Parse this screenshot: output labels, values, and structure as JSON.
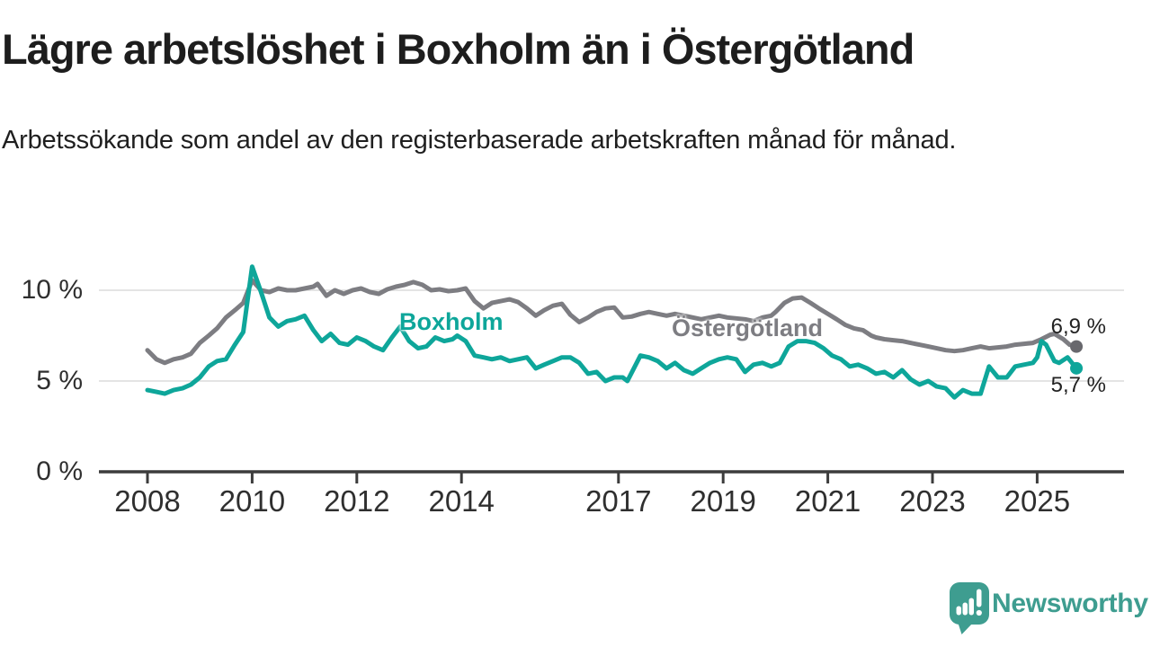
{
  "header": {
    "title": "Lägre arbetslöshet i Boxholm än i Östergötland",
    "subtitle": "Arbetssökande som andel av den registerbaserade arbetskraften månad för månad."
  },
  "chart_data": {
    "type": "line",
    "title": "Lägre arbetslöshet i Boxholm än i Östergötland",
    "unit": "%",
    "grid": "horizontal-only",
    "x_axis": {
      "ticks": [
        2008,
        2010,
        2012,
        2014,
        2017,
        2019,
        2021,
        2023,
        2025
      ],
      "range": [
        2007.1,
        2026.6
      ]
    },
    "y_axis": {
      "ticks": [
        {
          "value": 10,
          "label": "10 %"
        },
        {
          "value": 5,
          "label": "5 %"
        },
        {
          "value": 0,
          "label": "0 %"
        }
      ],
      "range": [
        0,
        11.8
      ]
    },
    "colors": {
      "boxholm": "#0ea69a",
      "ostergotland": "#7d7d82",
      "ostergotland_dot": "#68686d",
      "gridline": "#dcdcdc",
      "axis": "#3c3c3c"
    },
    "series": [
      {
        "name": "Östergötland",
        "color": "#7d7d82",
        "end_label": "6,9 %",
        "end_value": 6.9,
        "points": [
          [
            2008.0,
            6.7
          ],
          [
            2008.17,
            6.2
          ],
          [
            2008.33,
            6.0
          ],
          [
            2008.5,
            6.2
          ],
          [
            2008.67,
            6.3
          ],
          [
            2008.83,
            6.5
          ],
          [
            2009.0,
            7.1
          ],
          [
            2009.17,
            7.5
          ],
          [
            2009.33,
            7.9
          ],
          [
            2009.5,
            8.5
          ],
          [
            2009.67,
            8.9
          ],
          [
            2009.83,
            9.3
          ],
          [
            2010.0,
            10.55
          ],
          [
            2010.17,
            10.0
          ],
          [
            2010.33,
            9.9
          ],
          [
            2010.5,
            10.1
          ],
          [
            2010.67,
            10.0
          ],
          [
            2010.83,
            10.0
          ],
          [
            2011.0,
            10.1
          ],
          [
            2011.17,
            10.2
          ],
          [
            2011.25,
            10.35
          ],
          [
            2011.42,
            9.7
          ],
          [
            2011.58,
            10.0
          ],
          [
            2011.75,
            9.8
          ],
          [
            2011.92,
            10.0
          ],
          [
            2012.08,
            10.1
          ],
          [
            2012.25,
            9.9
          ],
          [
            2012.42,
            9.8
          ],
          [
            2012.58,
            10.05
          ],
          [
            2012.75,
            10.2
          ],
          [
            2012.92,
            10.3
          ],
          [
            2013.08,
            10.45
          ],
          [
            2013.25,
            10.3
          ],
          [
            2013.42,
            10.0
          ],
          [
            2013.58,
            10.05
          ],
          [
            2013.75,
            9.95
          ],
          [
            2013.92,
            10.0
          ],
          [
            2014.08,
            10.1
          ],
          [
            2014.25,
            9.4
          ],
          [
            2014.42,
            9.0
          ],
          [
            2014.58,
            9.3
          ],
          [
            2014.75,
            9.4
          ],
          [
            2014.92,
            9.5
          ],
          [
            2015.08,
            9.35
          ],
          [
            2015.25,
            9.0
          ],
          [
            2015.42,
            8.6
          ],
          [
            2015.58,
            8.9
          ],
          [
            2015.75,
            9.15
          ],
          [
            2015.92,
            9.25
          ],
          [
            2016.08,
            8.65
          ],
          [
            2016.25,
            8.25
          ],
          [
            2016.42,
            8.5
          ],
          [
            2016.58,
            8.8
          ],
          [
            2016.75,
            9.0
          ],
          [
            2016.92,
            9.05
          ],
          [
            2017.08,
            8.5
          ],
          [
            2017.25,
            8.55
          ],
          [
            2017.42,
            8.7
          ],
          [
            2017.58,
            8.8
          ],
          [
            2017.75,
            8.7
          ],
          [
            2017.92,
            8.6
          ],
          [
            2018.08,
            8.7
          ],
          [
            2018.25,
            8.6
          ],
          [
            2018.42,
            8.5
          ],
          [
            2018.58,
            8.4
          ],
          [
            2018.75,
            8.5
          ],
          [
            2018.92,
            8.6
          ],
          [
            2019.08,
            8.5
          ],
          [
            2019.25,
            8.45
          ],
          [
            2019.42,
            8.4
          ],
          [
            2019.58,
            8.3
          ],
          [
            2019.75,
            8.5
          ],
          [
            2019.92,
            8.6
          ],
          [
            2020.0,
            8.8
          ],
          [
            2020.17,
            9.3
          ],
          [
            2020.33,
            9.55
          ],
          [
            2020.5,
            9.6
          ],
          [
            2020.67,
            9.3
          ],
          [
            2020.83,
            9.0
          ],
          [
            2021.0,
            8.7
          ],
          [
            2021.17,
            8.4
          ],
          [
            2021.33,
            8.1
          ],
          [
            2021.5,
            7.9
          ],
          [
            2021.67,
            7.8
          ],
          [
            2021.83,
            7.5
          ],
          [
            2021.92,
            7.4
          ],
          [
            2022.08,
            7.3
          ],
          [
            2022.25,
            7.25
          ],
          [
            2022.42,
            7.2
          ],
          [
            2022.58,
            7.1
          ],
          [
            2022.75,
            7.0
          ],
          [
            2022.92,
            6.9
          ],
          [
            2023.08,
            6.8
          ],
          [
            2023.25,
            6.7
          ],
          [
            2023.42,
            6.65
          ],
          [
            2023.58,
            6.7
          ],
          [
            2023.75,
            6.8
          ],
          [
            2023.92,
            6.9
          ],
          [
            2024.08,
            6.8
          ],
          [
            2024.25,
            6.85
          ],
          [
            2024.42,
            6.9
          ],
          [
            2024.58,
            7.0
          ],
          [
            2024.75,
            7.05
          ],
          [
            2024.92,
            7.1
          ],
          [
            2025.08,
            7.3
          ],
          [
            2025.25,
            7.55
          ],
          [
            2025.33,
            7.6
          ],
          [
            2025.5,
            7.3
          ],
          [
            2025.62,
            7.0
          ],
          [
            2025.75,
            6.9
          ]
        ]
      },
      {
        "name": "Boxholm",
        "color": "#0ea69a",
        "end_label": "5,7 %",
        "end_value": 5.7,
        "points": [
          [
            2008.0,
            4.5
          ],
          [
            2008.17,
            4.4
          ],
          [
            2008.33,
            4.3
          ],
          [
            2008.5,
            4.5
          ],
          [
            2008.67,
            4.6
          ],
          [
            2008.83,
            4.8
          ],
          [
            2009.0,
            5.2
          ],
          [
            2009.17,
            5.8
          ],
          [
            2009.33,
            6.1
          ],
          [
            2009.5,
            6.2
          ],
          [
            2009.67,
            7.0
          ],
          [
            2009.83,
            7.7
          ],
          [
            2009.92,
            9.6
          ],
          [
            2010.0,
            11.3
          ],
          [
            2010.17,
            9.9
          ],
          [
            2010.33,
            8.5
          ],
          [
            2010.5,
            8.0
          ],
          [
            2010.67,
            8.3
          ],
          [
            2010.83,
            8.4
          ],
          [
            2011.0,
            8.6
          ],
          [
            2011.17,
            7.8
          ],
          [
            2011.33,
            7.2
          ],
          [
            2011.5,
            7.6
          ],
          [
            2011.67,
            7.1
          ],
          [
            2011.83,
            7.0
          ],
          [
            2012.0,
            7.4
          ],
          [
            2012.17,
            7.2
          ],
          [
            2012.33,
            6.9
          ],
          [
            2012.5,
            6.7
          ],
          [
            2012.67,
            7.4
          ],
          [
            2012.83,
            8.0
          ],
          [
            2013.0,
            7.2
          ],
          [
            2013.17,
            6.8
          ],
          [
            2013.33,
            6.9
          ],
          [
            2013.5,
            7.4
          ],
          [
            2013.67,
            7.2
          ],
          [
            2013.83,
            7.3
          ],
          [
            2013.92,
            7.5
          ],
          [
            2014.08,
            7.2
          ],
          [
            2014.25,
            6.4
          ],
          [
            2014.42,
            6.3
          ],
          [
            2014.58,
            6.2
          ],
          [
            2014.75,
            6.3
          ],
          [
            2014.92,
            6.1
          ],
          [
            2015.08,
            6.2
          ],
          [
            2015.25,
            6.3
          ],
          [
            2015.42,
            5.7
          ],
          [
            2015.58,
            5.9
          ],
          [
            2015.75,
            6.1
          ],
          [
            2015.92,
            6.3
          ],
          [
            2016.08,
            6.3
          ],
          [
            2016.25,
            6.0
          ],
          [
            2016.42,
            5.4
          ],
          [
            2016.58,
            5.5
          ],
          [
            2016.75,
            5.0
          ],
          [
            2016.92,
            5.2
          ],
          [
            2017.08,
            5.2
          ],
          [
            2017.17,
            5.0
          ],
          [
            2017.42,
            6.4
          ],
          [
            2017.58,
            6.3
          ],
          [
            2017.75,
            6.1
          ],
          [
            2017.92,
            5.7
          ],
          [
            2018.08,
            6.0
          ],
          [
            2018.25,
            5.6
          ],
          [
            2018.42,
            5.4
          ],
          [
            2018.58,
            5.7
          ],
          [
            2018.75,
            6.0
          ],
          [
            2018.92,
            6.2
          ],
          [
            2019.08,
            6.3
          ],
          [
            2019.25,
            6.2
          ],
          [
            2019.42,
            5.5
          ],
          [
            2019.58,
            5.9
          ],
          [
            2019.75,
            6.0
          ],
          [
            2019.92,
            5.8
          ],
          [
            2020.08,
            6.0
          ],
          [
            2020.25,
            6.9
          ],
          [
            2020.42,
            7.2
          ],
          [
            2020.58,
            7.2
          ],
          [
            2020.75,
            7.1
          ],
          [
            2020.92,
            6.8
          ],
          [
            2021.08,
            6.4
          ],
          [
            2021.25,
            6.2
          ],
          [
            2021.42,
            5.8
          ],
          [
            2021.58,
            5.9
          ],
          [
            2021.75,
            5.7
          ],
          [
            2021.92,
            5.4
          ],
          [
            2022.08,
            5.5
          ],
          [
            2022.25,
            5.2
          ],
          [
            2022.42,
            5.6
          ],
          [
            2022.58,
            5.1
          ],
          [
            2022.75,
            4.8
          ],
          [
            2022.92,
            5.0
          ],
          [
            2023.08,
            4.7
          ],
          [
            2023.25,
            4.6
          ],
          [
            2023.42,
            4.1
          ],
          [
            2023.58,
            4.5
          ],
          [
            2023.75,
            4.3
          ],
          [
            2023.92,
            4.3
          ],
          [
            2024.08,
            5.8
          ],
          [
            2024.25,
            5.2
          ],
          [
            2024.42,
            5.2
          ],
          [
            2024.58,
            5.8
          ],
          [
            2024.75,
            5.9
          ],
          [
            2024.92,
            6.0
          ],
          [
            2025.0,
            6.3
          ],
          [
            2025.08,
            7.2
          ],
          [
            2025.17,
            7.0
          ],
          [
            2025.33,
            6.1
          ],
          [
            2025.42,
            6.0
          ],
          [
            2025.58,
            6.3
          ],
          [
            2025.75,
            5.7
          ]
        ]
      }
    ]
  },
  "branding": {
    "logo_text": "Newsworthy",
    "logo_color": "#3e9d90"
  }
}
